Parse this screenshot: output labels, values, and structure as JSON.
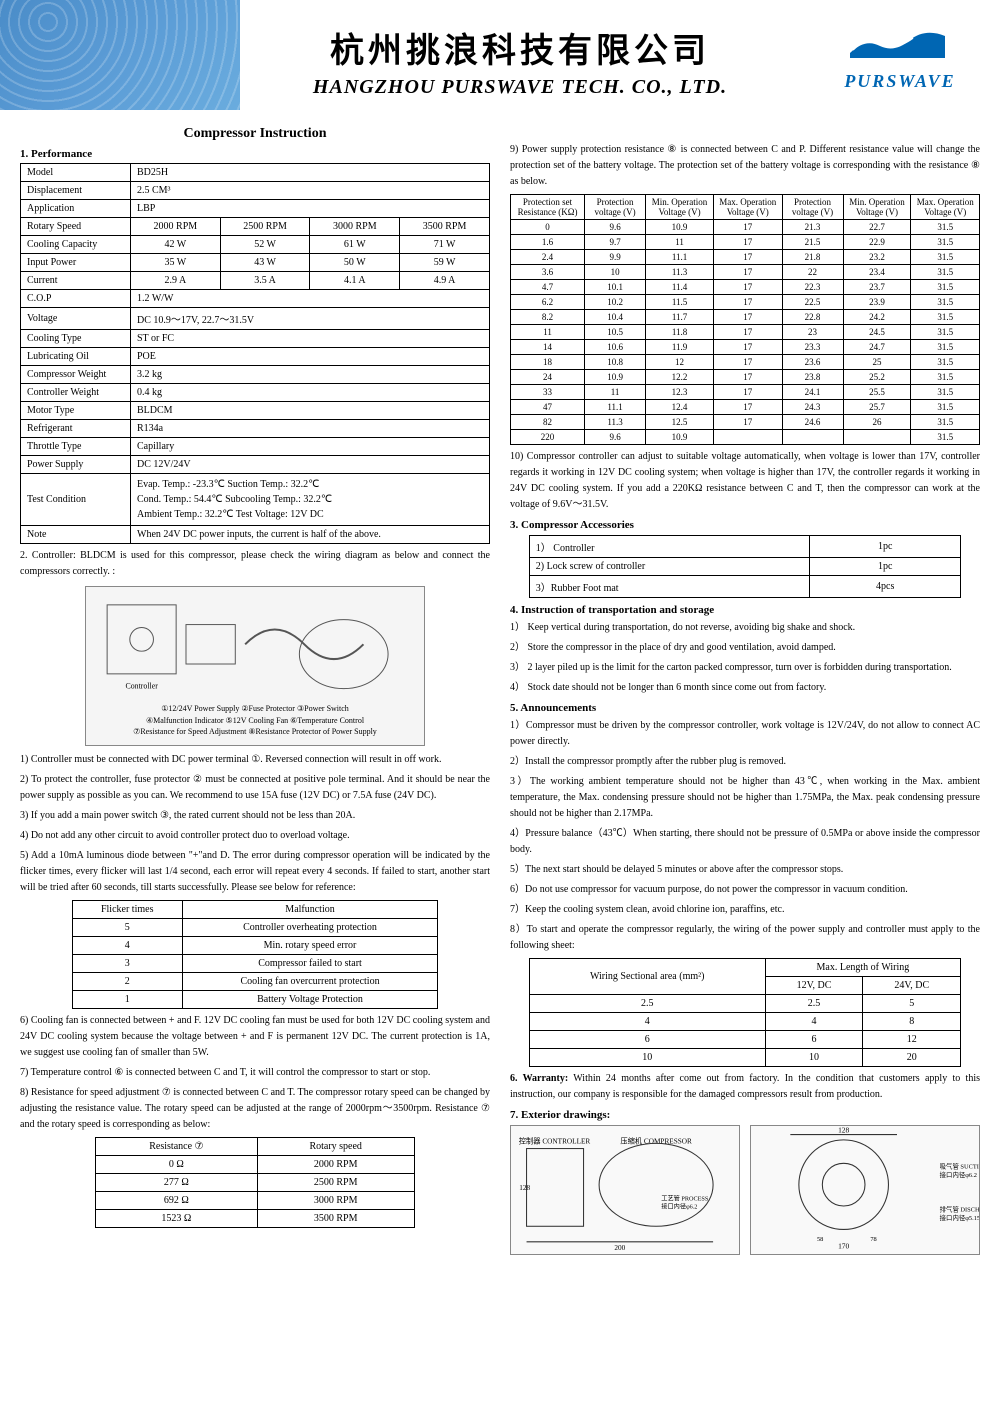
{
  "header": {
    "cn": "杭州挑浪科技有限公司",
    "en": "HANGZHOU PURSWAVE TECH. CO., LTD.",
    "brand": "PURSWAVE"
  },
  "title": "Compressor Instruction",
  "sec1": {
    "title": "1.  Performance",
    "rows": {
      "model_l": "Model",
      "model_v": "BD25H",
      "disp_l": "Displacement",
      "disp_v": "2.5 CM³",
      "app_l": "Application",
      "app_v": "LBP",
      "speed_l": "Rotary Speed",
      "s1": "2000 RPM",
      "s2": "2500 RPM",
      "s3": "3000 RPM",
      "s4": "3500 RPM",
      "cool_l": "Cooling Capacity",
      "c1": "42 W",
      "c2": "52 W",
      "c3": "61 W",
      "c4": "71 W",
      "input_l": "Input Power",
      "i1": "35 W",
      "i2": "43 W",
      "i3": "50 W",
      "i4": "59 W",
      "cur_l": "Current",
      "a1": "2.9 A",
      "a2": "3.5 A",
      "a3": "4.1 A",
      "a4": "4.9 A",
      "cop_l": "C.O.P",
      "cop_v": "1.2 W/W",
      "volt_l": "Voltage",
      "volt_v": "DC 10.9～17V, 22.7～31.5V",
      "cooltype_l": "Cooling Type",
      "cooltype_v": "ST or FC",
      "oil_l": "Lubricating Oil",
      "oil_v": "POE",
      "cw_l": "Compressor Weight",
      "cw_v": "3.2 kg",
      "ctw_l": "Controller Weight",
      "ctw_v": "0.4 kg",
      "motor_l": "Motor Type",
      "motor_v": "BLDCM",
      "refr_l": "Refrigerant",
      "refr_v": "R134a",
      "thr_l": "Throttle Type",
      "thr_v": "Capillary",
      "ps_l": "Power Supply",
      "ps_v": "DC 12V/24V",
      "tc_l": "Test Condition",
      "tc_v": "Evap. Temp.:   -23.3℃      Suction Temp.:      32.2℃\nCond. Temp.:   54.4℃      Subcooling Temp.:  32.2℃\nAmbient Temp.: 32.2℃      Test Voltage:         12V DC",
      "note_l": "Note",
      "note_v": "When 24V DC power inputs, the current is half of the above."
    }
  },
  "sec2": {
    "intro": "2.  Controller: BLDCM is used for this compressor, please check the wiring diagram as below and connect the compressors correctly. :",
    "diag_caps": {
      "r1": "①12/24V Power Supply  ②Fuse Protector   ③Power Switch",
      "r2": "④Malfunction Indicator  ⑤12V Cooling Fan  ⑥Temperature Control",
      "r3": "⑦Resistance for Speed Adjustment   ⑧Resistance Protector of Power Supply"
    },
    "p1": "1) Controller must be connected with DC power terminal ①. Reversed connection will result in off work.",
    "p2": "2) To protect the controller, fuse protector ② must be connected at positive pole terminal. And it should be near the power supply as possible as you can. We recommend to use 15A fuse (12V DC) or 7.5A fuse (24V DC).",
    "p3": "3) If you add a main power switch ③, the rated current should not be less than 20A.",
    "p4": "4) Do not add any other circuit to avoid controller protect duo to overload voltage.",
    "p5": "5) Add a 10mA luminous diode between \"+\"and D. The error during compressor operation will be indicated by the flicker times, every flicker will last 1/4 second, each error will repeat every 4 seconds. If failed to start, another start will be tried after 60 seconds, till starts successfully. Please see below for reference:"
  },
  "flicker": {
    "h1": "Flicker times",
    "h2": "Malfunction",
    "rows": [
      [
        "5",
        "Controller overheating protection"
      ],
      [
        "4",
        "Min. rotary speed error"
      ],
      [
        "3",
        "Compressor failed to start"
      ],
      [
        "2",
        "Cooling fan overcurrent protection"
      ],
      [
        "1",
        "Battery Voltage Protection"
      ]
    ]
  },
  "sec2b": {
    "p6": "6) Cooling fan is connected between + and F. 12V DC cooling fan must be used for both 12V DC cooling system and 24V DC cooling system because the voltage between + and F is permanent 12V DC. The current protection is 1A, we suggest use cooling fan of smaller than 5W.",
    "p7": "7) Temperature control ⑥ is connected between C and T, it will control the compressor to start or stop.",
    "p8": "8) Resistance for speed adjustment ⑦ is connected between C and T. The compressor rotary speed can be changed by adjusting the resistance value. The rotary speed can be adjusted at the range of 2000rpm～3500rpm. Resistance ⑦ and the rotary speed is corresponding as below:"
  },
  "resist": {
    "h1": "Resistance ⑦",
    "h2": "Rotary speed",
    "rows": [
      [
        "0 Ω",
        "2000 RPM"
      ],
      [
        "277 Ω",
        "2500 RPM"
      ],
      [
        "692 Ω",
        "3000 RPM"
      ],
      [
        "1523 Ω",
        "3500 RPM"
      ]
    ]
  },
  "sec9": {
    "p9": "9) Power supply protection resistance ⑧ is connected between C and P. Different resistance value will change the protection set of the battery voltage. The protection set of the battery voltage is corresponding with the resistance ⑧ as below."
  },
  "protect": {
    "head": [
      "Protection set Resistance (KΩ)",
      "Protection voltage (V)",
      "Min. Operation Voltage (V)",
      "Max. Operation Voltage (V)",
      "Protection voltage (V)",
      "Min. Operation Voltage (V)",
      "Max. Operation Voltage (V)"
    ],
    "rows": [
      [
        "0",
        "9.6",
        "10.9",
        "17",
        "21.3",
        "22.7",
        "31.5"
      ],
      [
        "1.6",
        "9.7",
        "11",
        "17",
        "21.5",
        "22.9",
        "31.5"
      ],
      [
        "2.4",
        "9.9",
        "11.1",
        "17",
        "21.8",
        "23.2",
        "31.5"
      ],
      [
        "3.6",
        "10",
        "11.3",
        "17",
        "22",
        "23.4",
        "31.5"
      ],
      [
        "4.7",
        "10.1",
        "11.4",
        "17",
        "22.3",
        "23.7",
        "31.5"
      ],
      [
        "6.2",
        "10.2",
        "11.5",
        "17",
        "22.5",
        "23.9",
        "31.5"
      ],
      [
        "8.2",
        "10.4",
        "11.7",
        "17",
        "22.8",
        "24.2",
        "31.5"
      ],
      [
        "11",
        "10.5",
        "11.8",
        "17",
        "23",
        "24.5",
        "31.5"
      ],
      [
        "14",
        "10.6",
        "11.9",
        "17",
        "23.3",
        "24.7",
        "31.5"
      ],
      [
        "18",
        "10.8",
        "12",
        "17",
        "23.6",
        "25",
        "31.5"
      ],
      [
        "24",
        "10.9",
        "12.2",
        "17",
        "23.8",
        "25.2",
        "31.5"
      ],
      [
        "33",
        "11",
        "12.3",
        "17",
        "24.1",
        "25.5",
        "31.5"
      ],
      [
        "47",
        "11.1",
        "12.4",
        "17",
        "24.3",
        "25.7",
        "31.5"
      ],
      [
        "82",
        "11.3",
        "12.5",
        "17",
        "24.6",
        "26",
        "31.5"
      ],
      [
        "220",
        "9.6",
        "10.9",
        "",
        "",
        "",
        "31.5"
      ]
    ]
  },
  "sec10": "10) Compressor controller can adjust to suitable voltage automatically, when voltage is lower than 17V, controller regards it working in 12V DC cooling system; when voltage is higher than 17V, the controller regards it working in 24V DC cooling system. If you add a 220KΩ resistance between C and T, then the compressor can work at the voltage of   9.6V～31.5V.",
  "sec3": {
    "title": "3. Compressor Accessories",
    "rows": [
      [
        "1） Controller",
        "1pc"
      ],
      [
        "2)   Lock screw of controller",
        "1pc"
      ],
      [
        "3）Rubber Foot mat",
        "4pcs"
      ]
    ]
  },
  "sec4": {
    "title": "4.  Instruction of transportation and storage",
    "items": [
      "1） Keep vertical during transportation, do not reverse, avoiding big shake and shock.",
      "2） Store the compressor in the place of dry and good ventilation, avoid damped.",
      "3） 2 layer piled up is the limit for the carton packed compressor, turn over is forbidden during transportation.",
      "4） Stock date should not be longer than 6 month since come out from factory."
    ]
  },
  "sec5": {
    "title": "5.  Announcements",
    "items": [
      "1）Compressor must be driven by the compressor controller, work voltage is 12V/24V, do not allow to connect AC power directly.",
      "2）Install the compressor promptly after the rubber plug is removed.",
      "3）The working ambient temperature should not be higher than 43℃, when working in the Max. ambient temperature, the Max. condensing pressure should not be higher than 1.75MPa, the Max. peak condensing pressure should not be higher than 2.17MPa.",
      "4）Pressure balance（43℃）When starting, there should not be pressure of 0.5MPa or above inside the compressor body.",
      "5）The next start should be delayed 5 minutes or above after the compressor stops.",
      "6）Do not use compressor for vacuum purpose, do not power the compressor in vacuum condition.",
      "7）Keep the cooling system clean, avoid chlorine ion, paraffins, etc.",
      "8）To start and operate the compressor regularly, the wiring of the power supply and controller must apply to the following sheet:"
    ]
  },
  "wiring": {
    "h1": "Wiring Sectional area (mm²)",
    "h2": "Max. Length of Wiring",
    "sub1": "12V, DC",
    "sub2": "24V, DC",
    "rows": [
      [
        "2.5",
        "2.5",
        "5"
      ],
      [
        "4",
        "4",
        "8"
      ],
      [
        "6",
        "6",
        "12"
      ],
      [
        "10",
        "10",
        "20"
      ]
    ]
  },
  "sec6": "6.  Warranty: Within 24 months after come out from factory. In the condition that customers apply to this instruction, our company is responsible for the damaged compressors result from production.",
  "sec7title": "7.  Exterior drawings:"
}
